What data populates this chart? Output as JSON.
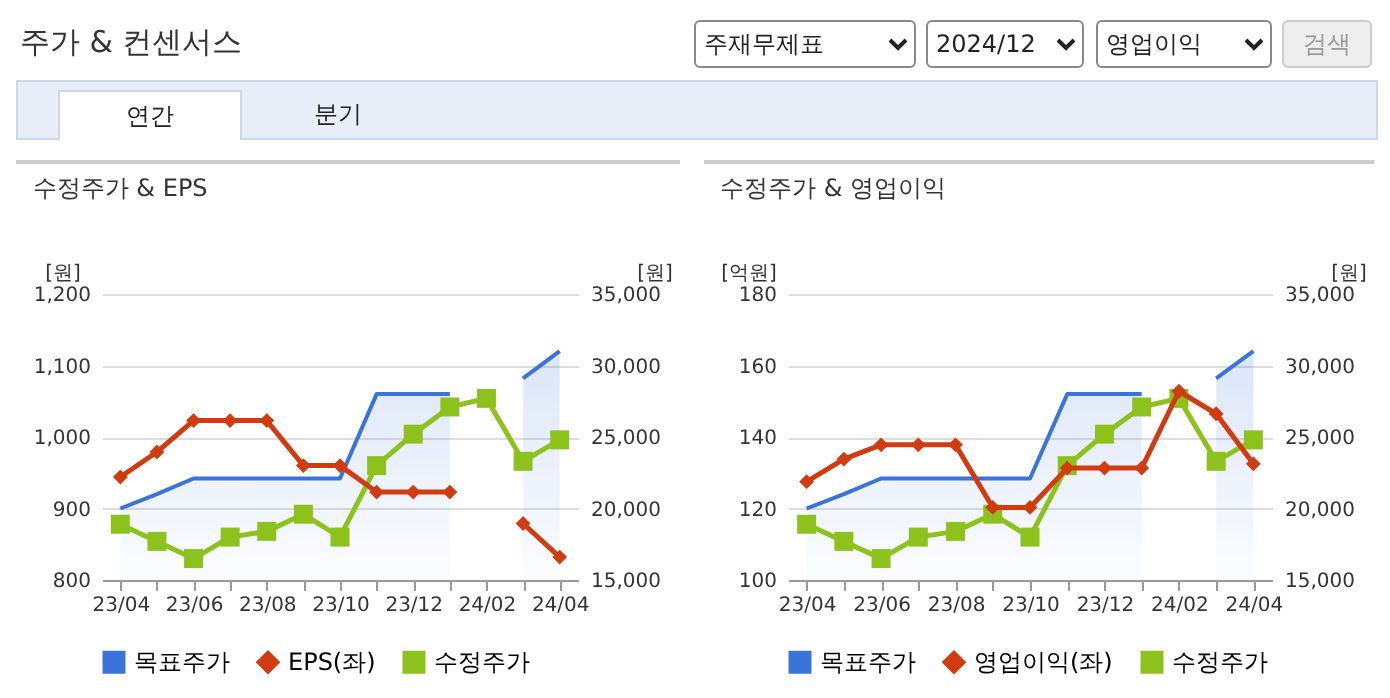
{
  "chart_data": [
    {
      "type": "other",
      "title": "주가 & 컨센서스",
      "annotations": [
        "주재무제표",
        "2024/12",
        "영업이익",
        "검색",
        "연간",
        "분기"
      ]
    },
    {
      "type": "line",
      "title": "수정주가 & EPS",
      "ylabel": "[원]",
      "y2label": "[원]",
      "categories": [
        "23/04",
        null,
        "23/06",
        null,
        "23/08",
        null,
        "23/10",
        null,
        "23/12",
        null,
        "24/02",
        null,
        "24/04"
      ],
      "ylim": [
        800,
        1200
      ],
      "yticks": [
        800,
        900,
        {
          "value": 1000,
          "label": "1,000"
        },
        {
          "value": 1100,
          "label": "1,100"
        },
        {
          "value": 1200,
          "label": "1,200"
        }
      ],
      "y2lim": [
        15000,
        35000
      ],
      "y2ticks": [
        {
          "value": 15000,
          "label": "15,000"
        },
        {
          "value": 20000,
          "label": "20,000"
        },
        {
          "value": 25000,
          "label": "25,000"
        },
        {
          "value": 30000,
          "label": "30,000"
        },
        {
          "value": 35000,
          "label": "35,000"
        }
      ],
      "grid": "y",
      "legend": "bottom",
      "series": [
        {
          "name": "목표주가",
          "type": "area",
          "axis": "y2",
          "marker": "none",
          "color": "#3a74d8",
          "values": [
            20000,
            21000,
            22100,
            22100,
            22100,
            22100,
            22100,
            28000,
            28000,
            28000,
            null,
            29100,
            31000
          ]
        },
        {
          "name": "EPS(좌)",
          "type": "line",
          "marker": "diamond",
          "color": "#d03c10",
          "values": [
            944,
            979,
            1023,
            1023,
            1023,
            960,
            960,
            923,
            923,
            923,
            null,
            879,
            832
          ]
        },
        {
          "name": "수정주가",
          "type": "line",
          "axis": "y2",
          "marker": "square",
          "color": "#8cc21b",
          "values": [
            18900,
            17700,
            16500,
            18000,
            18400,
            19600,
            18000,
            23000,
            25200,
            27100,
            27700,
            23300,
            24800
          ]
        }
      ]
    },
    {
      "type": "line",
      "title": "수정주가 & 영업이익",
      "ylabel": "[억원]",
      "y2label": "[원]",
      "categories": [
        "23/04",
        null,
        "23/06",
        null,
        "23/08",
        null,
        "23/10",
        null,
        "23/12",
        null,
        "24/02",
        null,
        "24/04"
      ],
      "ylim": [
        100,
        180
      ],
      "yticks": [
        100,
        120,
        140,
        160,
        180
      ],
      "y2lim": [
        15000,
        35000
      ],
      "y2ticks": [
        {
          "value": 15000,
          "label": "15,000"
        },
        {
          "value": 20000,
          "label": "20,000"
        },
        {
          "value": 25000,
          "label": "25,000"
        },
        {
          "value": 30000,
          "label": "30,000"
        },
        {
          "value": 35000,
          "label": "35,000"
        }
      ],
      "grid": "y",
      "legend": "bottom",
      "series": [
        {
          "name": "목표주가",
          "type": "area",
          "axis": "y2",
          "marker": "none",
          "color": "#3a74d8",
          "values": [
            20000,
            21000,
            22100,
            22100,
            22100,
            22100,
            22100,
            28000,
            28000,
            28000,
            null,
            29100,
            31000
          ]
        },
        {
          "name": "영업이익(좌)",
          "type": "line",
          "marker": "diamond",
          "color": "#d03c10",
          "values": [
            127.5,
            133.8,
            137.8,
            137.8,
            137.8,
            120.3,
            120.3,
            131.3,
            131.3,
            131.3,
            152.8,
            146.5,
            132.5
          ]
        },
        {
          "name": "수정주가",
          "type": "line",
          "axis": "y2",
          "marker": "square",
          "color": "#8cc21b",
          "values": [
            18900,
            17700,
            16500,
            18000,
            18400,
            19600,
            18000,
            23000,
            25200,
            27100,
            27700,
            23300,
            24800
          ]
        }
      ]
    }
  ]
}
